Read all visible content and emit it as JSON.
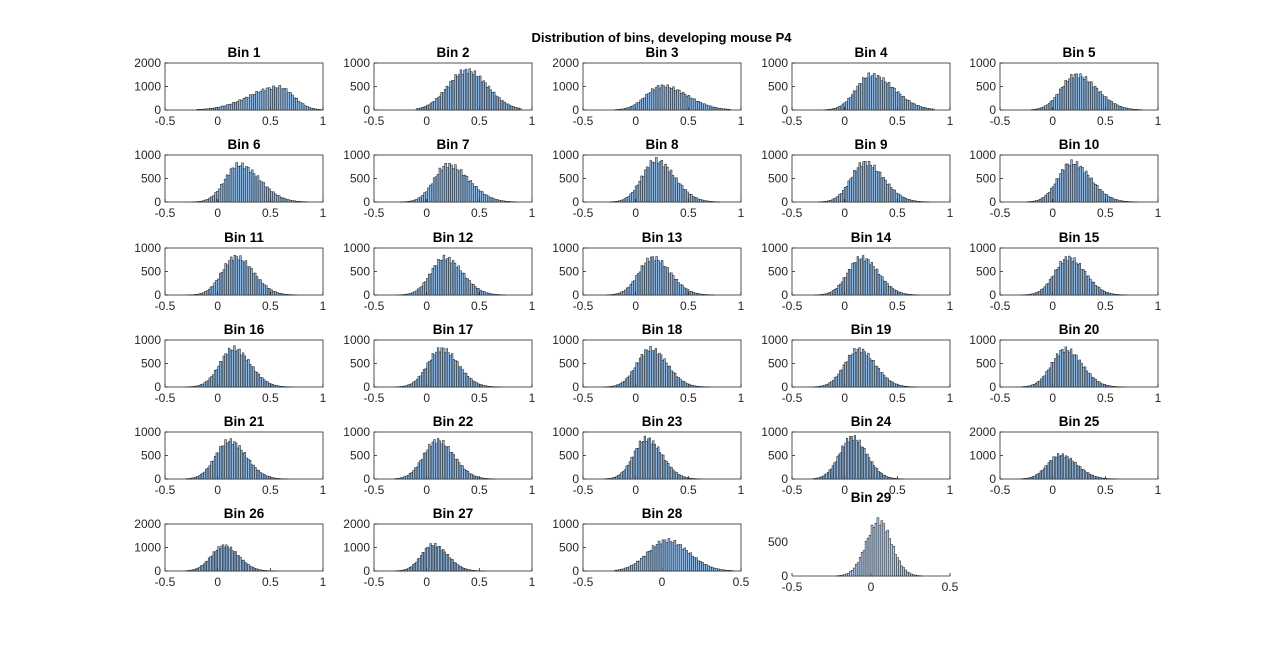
{
  "figure": {
    "title": "Distribution of bins, developing mouse P4"
  },
  "chart_data": [
    {
      "type": "bar",
      "title": "Bin 1",
      "ylim": [
        0,
        2000
      ],
      "yticks": [
        "0",
        "1000",
        "2000"
      ],
      "xlim": [
        -0.5,
        1
      ],
      "xticks": [
        "-0.5",
        "0",
        "0.5",
        "1"
      ],
      "shape": {
        "mode": "skew",
        "mean": 0.58,
        "sdl": 0.28,
        "sdr": 0.14,
        "peak": 1050,
        "lo": -0.2,
        "hi": 1.0
      }
    },
    {
      "type": "bar",
      "title": "Bin 2",
      "ylim": [
        0,
        1000
      ],
      "yticks": [
        "0",
        "500",
        "1000"
      ],
      "xlim": [
        -0.5,
        1
      ],
      "xticks": [
        "-0.5",
        "0",
        "0.5",
        "1"
      ],
      "shape": {
        "mode": "skew",
        "mean": 0.38,
        "sdl": 0.18,
        "sdr": 0.2,
        "peak": 900,
        "lo": -0.1,
        "hi": 0.9
      }
    },
    {
      "type": "bar",
      "title": "Bin 3",
      "ylim": [
        0,
        2000
      ],
      "yticks": [
        "0",
        "1000",
        "2000"
      ],
      "xlim": [
        -0.5,
        1
      ],
      "xticks": [
        "-0.5",
        "0",
        "0.5",
        "1"
      ],
      "shape": {
        "mode": "skew",
        "mean": 0.25,
        "sdl": 0.15,
        "sdr": 0.24,
        "peak": 1100,
        "lo": -0.2,
        "hi": 0.9
      }
    },
    {
      "type": "bar",
      "title": "Bin 4",
      "ylim": [
        0,
        1000
      ],
      "yticks": [
        "0",
        "500",
        "1000"
      ],
      "xlim": [
        -0.5,
        1
      ],
      "xticks": [
        "-0.5",
        "0",
        "0.5",
        "1"
      ],
      "shape": {
        "mode": "skew",
        "mean": 0.25,
        "sdl": 0.14,
        "sdr": 0.22,
        "peak": 800,
        "lo": -0.2,
        "hi": 0.85
      }
    },
    {
      "type": "bar",
      "title": "Bin 5",
      "ylim": [
        0,
        1000
      ],
      "yticks": [
        "0",
        "500",
        "1000"
      ],
      "xlim": [
        -0.5,
        1
      ],
      "xticks": [
        "-0.5",
        "0",
        "0.5",
        "1"
      ],
      "shape": {
        "mode": "skew",
        "mean": 0.22,
        "sdl": 0.14,
        "sdr": 0.2,
        "peak": 800,
        "lo": -0.2,
        "hi": 0.85
      }
    },
    {
      "type": "bar",
      "title": "Bin 6",
      "ylim": [
        0,
        1000
      ],
      "yticks": [
        "0",
        "500",
        "1000"
      ],
      "xlim": [
        -0.5,
        1
      ],
      "xticks": [
        "-0.5",
        "0",
        "0.5",
        "1"
      ],
      "shape": {
        "mode": "skew",
        "mean": 0.2,
        "sdl": 0.13,
        "sdr": 0.2,
        "peak": 850,
        "lo": -0.25,
        "hi": 0.85
      }
    },
    {
      "type": "bar",
      "title": "Bin 7",
      "ylim": [
        0,
        1000
      ],
      "yticks": [
        "0",
        "500",
        "1000"
      ],
      "xlim": [
        -0.5,
        1
      ],
      "xticks": [
        "-0.5",
        "0",
        "0.5",
        "1"
      ],
      "shape": {
        "mode": "skew",
        "mean": 0.2,
        "sdl": 0.13,
        "sdr": 0.2,
        "peak": 850,
        "lo": -0.25,
        "hi": 0.85
      }
    },
    {
      "type": "bar",
      "title": "Bin 8",
      "ylim": [
        0,
        1000
      ],
      "yticks": [
        "0",
        "500",
        "1000"
      ],
      "xlim": [
        -0.5,
        1
      ],
      "xticks": [
        "-0.5",
        "0",
        "0.5",
        "1"
      ],
      "shape": {
        "mode": "skew",
        "mean": 0.19,
        "sdl": 0.13,
        "sdr": 0.18,
        "peak": 950,
        "lo": -0.25,
        "hi": 0.8
      }
    },
    {
      "type": "bar",
      "title": "Bin 9",
      "ylim": [
        0,
        1000
      ],
      "yticks": [
        "0",
        "500",
        "1000"
      ],
      "xlim": [
        -0.5,
        1
      ],
      "xticks": [
        "-0.5",
        "0",
        "0.5",
        "1"
      ],
      "shape": {
        "mode": "skew",
        "mean": 0.19,
        "sdl": 0.13,
        "sdr": 0.18,
        "peak": 900,
        "lo": -0.25,
        "hi": 0.8
      }
    },
    {
      "type": "bar",
      "title": "Bin 10",
      "ylim": [
        0,
        1000
      ],
      "yticks": [
        "0",
        "500",
        "1000"
      ],
      "xlim": [
        -0.5,
        1
      ],
      "xticks": [
        "-0.5",
        "0",
        "0.5",
        "1"
      ],
      "shape": {
        "mode": "skew",
        "mean": 0.18,
        "sdl": 0.13,
        "sdr": 0.18,
        "peak": 900,
        "lo": -0.25,
        "hi": 0.8
      }
    },
    {
      "type": "bar",
      "title": "Bin 11",
      "ylim": [
        0,
        1000
      ],
      "yticks": [
        "0",
        "500",
        "1000"
      ],
      "xlim": [
        -0.5,
        1
      ],
      "xticks": [
        "-0.5",
        "0",
        "0.5",
        "1"
      ],
      "shape": {
        "mode": "skew",
        "mean": 0.17,
        "sdl": 0.13,
        "sdr": 0.17,
        "peak": 870,
        "lo": -0.3,
        "hi": 0.75
      }
    },
    {
      "type": "bar",
      "title": "Bin 12",
      "ylim": [
        0,
        1000
      ],
      "yticks": [
        "0",
        "500",
        "1000"
      ],
      "xlim": [
        -0.5,
        1
      ],
      "xticks": [
        "-0.5",
        "0",
        "0.5",
        "1"
      ],
      "shape": {
        "mode": "skew",
        "mean": 0.17,
        "sdl": 0.13,
        "sdr": 0.17,
        "peak": 850,
        "lo": -0.3,
        "hi": 0.75
      }
    },
    {
      "type": "bar",
      "title": "Bin 13",
      "ylim": [
        0,
        1000
      ],
      "yticks": [
        "0",
        "500",
        "1000"
      ],
      "xlim": [
        -0.5,
        1
      ],
      "xticks": [
        "-0.5",
        "0",
        "0.5",
        "1"
      ],
      "shape": {
        "mode": "skew",
        "mean": 0.16,
        "sdl": 0.13,
        "sdr": 0.17,
        "peak": 850,
        "lo": -0.3,
        "hi": 0.75
      }
    },
    {
      "type": "bar",
      "title": "Bin 14",
      "ylim": [
        0,
        1000
      ],
      "yticks": [
        "0",
        "500",
        "1000"
      ],
      "xlim": [
        -0.5,
        1
      ],
      "xticks": [
        "-0.5",
        "0",
        "0.5",
        "1"
      ],
      "shape": {
        "mode": "skew",
        "mean": 0.16,
        "sdl": 0.13,
        "sdr": 0.16,
        "peak": 850,
        "lo": -0.3,
        "hi": 0.7
      }
    },
    {
      "type": "bar",
      "title": "Bin 15",
      "ylim": [
        0,
        1000
      ],
      "yticks": [
        "0",
        "500",
        "1000"
      ],
      "xlim": [
        -0.5,
        1
      ],
      "xticks": [
        "-0.5",
        "0",
        "0.5",
        "1"
      ],
      "shape": {
        "mode": "skew",
        "mean": 0.15,
        "sdl": 0.13,
        "sdr": 0.16,
        "peak": 850,
        "lo": -0.3,
        "hi": 0.7
      }
    },
    {
      "type": "bar",
      "title": "Bin 16",
      "ylim": [
        0,
        1000
      ],
      "yticks": [
        "0",
        "500",
        "1000"
      ],
      "xlim": [
        -0.5,
        1
      ],
      "xticks": [
        "-0.5",
        "0",
        "0.5",
        "1"
      ],
      "shape": {
        "mode": "skew",
        "mean": 0.15,
        "sdl": 0.13,
        "sdr": 0.16,
        "peak": 880,
        "lo": -0.3,
        "hi": 0.7
      }
    },
    {
      "type": "bar",
      "title": "Bin 17",
      "ylim": [
        0,
        1000
      ],
      "yticks": [
        "0",
        "500",
        "1000"
      ],
      "xlim": [
        -0.5,
        1
      ],
      "xticks": [
        "-0.5",
        "0",
        "0.5",
        "1"
      ],
      "shape": {
        "mode": "skew",
        "mean": 0.14,
        "sdl": 0.13,
        "sdr": 0.16,
        "peak": 870,
        "lo": -0.3,
        "hi": 0.7
      }
    },
    {
      "type": "bar",
      "title": "Bin 18",
      "ylim": [
        0,
        1000
      ],
      "yticks": [
        "0",
        "500",
        "1000"
      ],
      "xlim": [
        -0.5,
        1
      ],
      "xticks": [
        "-0.5",
        "0",
        "0.5",
        "1"
      ],
      "shape": {
        "mode": "skew",
        "mean": 0.14,
        "sdl": 0.13,
        "sdr": 0.16,
        "peak": 870,
        "lo": -0.3,
        "hi": 0.7
      }
    },
    {
      "type": "bar",
      "title": "Bin 19",
      "ylim": [
        0,
        1000
      ],
      "yticks": [
        "0",
        "500",
        "1000"
      ],
      "xlim": [
        -0.5,
        1
      ],
      "xticks": [
        "-0.5",
        "0",
        "0.5",
        "1"
      ],
      "shape": {
        "mode": "skew",
        "mean": 0.13,
        "sdl": 0.13,
        "sdr": 0.16,
        "peak": 860,
        "lo": -0.3,
        "hi": 0.7
      }
    },
    {
      "type": "bar",
      "title": "Bin 20",
      "ylim": [
        0,
        1000
      ],
      "yticks": [
        "0",
        "500",
        "1000"
      ],
      "xlim": [
        -0.5,
        1
      ],
      "xticks": [
        "-0.5",
        "0",
        "0.5",
        "1"
      ],
      "shape": {
        "mode": "skew",
        "mean": 0.12,
        "sdl": 0.13,
        "sdr": 0.16,
        "peak": 860,
        "lo": -0.3,
        "hi": 0.7
      }
    },
    {
      "type": "bar",
      "title": "Bin 21",
      "ylim": [
        0,
        1000
      ],
      "yticks": [
        "0",
        "500",
        "1000"
      ],
      "xlim": [
        -0.5,
        1
      ],
      "xticks": [
        "-0.5",
        "0",
        "0.5",
        "1"
      ],
      "shape": {
        "mode": "skew",
        "mean": 0.11,
        "sdl": 0.13,
        "sdr": 0.16,
        "peak": 870,
        "lo": -0.3,
        "hi": 0.7
      }
    },
    {
      "type": "bar",
      "title": "Bin 22",
      "ylim": [
        0,
        1000
      ],
      "yticks": [
        "0",
        "500",
        "1000"
      ],
      "xlim": [
        -0.5,
        1
      ],
      "xticks": [
        "-0.5",
        "0",
        "0.5",
        "1"
      ],
      "shape": {
        "mode": "skew",
        "mean": 0.1,
        "sdl": 0.13,
        "sdr": 0.16,
        "peak": 880,
        "lo": -0.3,
        "hi": 0.7
      }
    },
    {
      "type": "bar",
      "title": "Bin 23",
      "ylim": [
        0,
        1000
      ],
      "yticks": [
        "0",
        "500",
        "1000"
      ],
      "xlim": [
        -0.5,
        1
      ],
      "xticks": [
        "-0.5",
        "0",
        "0.5",
        "1"
      ],
      "shape": {
        "mode": "skew",
        "mean": 0.1,
        "sdl": 0.12,
        "sdr": 0.15,
        "peak": 920,
        "lo": -0.3,
        "hi": 0.65
      }
    },
    {
      "type": "bar",
      "title": "Bin 24",
      "ylim": [
        0,
        1000
      ],
      "yticks": [
        "0",
        "500",
        "1000"
      ],
      "xlim": [
        -0.5,
        1
      ],
      "xticks": [
        "-0.5",
        "0",
        "0.5",
        "1"
      ],
      "shape": {
        "mode": "skew",
        "mean": 0.07,
        "sdl": 0.12,
        "sdr": 0.14,
        "peak": 950,
        "lo": -0.3,
        "hi": 0.6
      }
    },
    {
      "type": "bar",
      "title": "Bin 25",
      "ylim": [
        0,
        2000
      ],
      "yticks": [
        "0",
        "1000",
        "2000"
      ],
      "xlim": [
        -0.5,
        1
      ],
      "xticks": [
        "-0.5",
        "0",
        "0.5",
        "1"
      ],
      "shape": {
        "mode": "skew",
        "mean": 0.07,
        "sdl": 0.12,
        "sdr": 0.16,
        "peak": 1100,
        "lo": -0.3,
        "hi": 0.6
      }
    },
    {
      "type": "bar",
      "title": "Bin 26",
      "ylim": [
        0,
        2000
      ],
      "yticks": [
        "0",
        "1000",
        "2000"
      ],
      "xlim": [
        -0.5,
        1
      ],
      "xticks": [
        "-0.5",
        "0",
        "0.5",
        "1"
      ],
      "shape": {
        "mode": "skew",
        "mean": 0.06,
        "sdl": 0.12,
        "sdr": 0.14,
        "peak": 1150,
        "lo": -0.3,
        "hi": 0.6
      }
    },
    {
      "type": "bar",
      "title": "Bin 27",
      "ylim": [
        0,
        2000
      ],
      "yticks": [
        "0",
        "1000",
        "2000"
      ],
      "xlim": [
        -0.5,
        1
      ],
      "xticks": [
        "-0.5",
        "0",
        "0.5",
        "1"
      ],
      "shape": {
        "mode": "skew",
        "mean": 0.06,
        "sdl": 0.11,
        "sdr": 0.14,
        "peak": 1200,
        "lo": -0.3,
        "hi": 0.6
      }
    },
    {
      "type": "bar",
      "title": "Bin 28",
      "ylim": [
        0,
        1000
      ],
      "yticks": [
        "0",
        "500",
        "1000"
      ],
      "xlim": [
        -0.5,
        0.5
      ],
      "xticks": [
        "-0.5",
        "0",
        "0.5"
      ],
      "shape": {
        "mode": "skew",
        "mean": 0.03,
        "sdl": 0.12,
        "sdr": 0.14,
        "peak": 700,
        "lo": -0.3,
        "hi": 0.45
      }
    },
    {
      "type": "bar",
      "title": "Bin 29",
      "ylim": [
        0,
        1000
      ],
      "yticks": [
        "0",
        "500"
      ],
      "xlim": [
        -0.5,
        0.5
      ],
      "xticks": [
        "-0.5",
        "0",
        "0.5"
      ],
      "shape": {
        "mode": "peak",
        "mean": 0.05,
        "sdl": 0.08,
        "sdr": 0.08,
        "peak": 870,
        "lo": -0.3,
        "hi": 0.45
      },
      "no_frame": true
    }
  ]
}
